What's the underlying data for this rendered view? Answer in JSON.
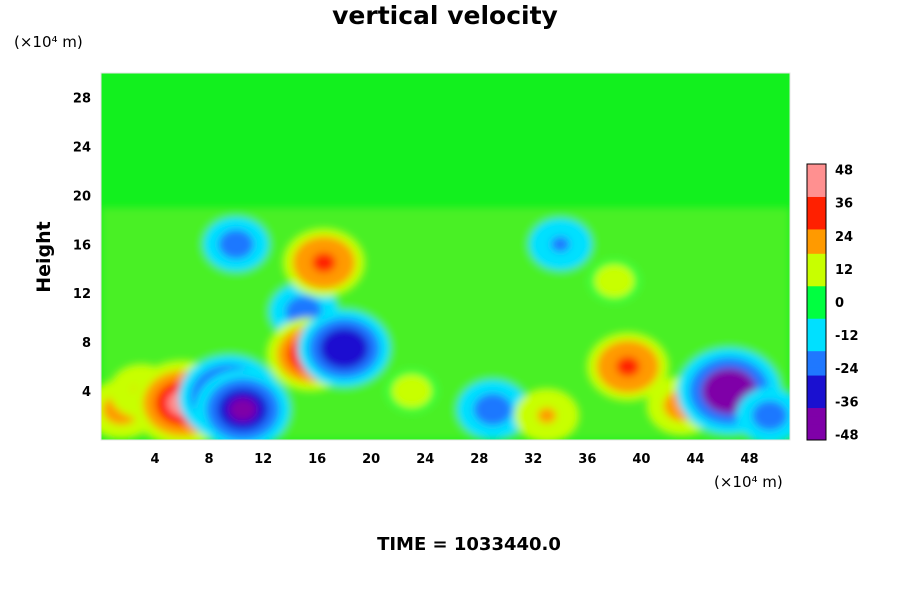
{
  "chart_data": {
    "type": "heatmap",
    "title": "vertical velocity",
    "xlabel": "",
    "ylabel": "Height",
    "x_unit_label": "(×10⁴ m)",
    "y_unit_label": "(×10⁴ m)",
    "x_ticks": [
      4,
      8,
      12,
      16,
      20,
      24,
      28,
      32,
      36,
      40,
      44,
      48
    ],
    "y_ticks": [
      4,
      8,
      12,
      16,
      20,
      24,
      28
    ],
    "xlim": [
      0,
      51
    ],
    "ylim": [
      0,
      30
    ],
    "colorbar": {
      "ticks": [
        48,
        36,
        24,
        12,
        0,
        -12,
        -24,
        -36,
        -48
      ],
      "range": [
        -50,
        50
      ],
      "colors": [
        "#7f00a8",
        "#1a10d0",
        "#1f78ff",
        "#00e0ff",
        "#00ff40",
        "#c8ff00",
        "#ff9a00",
        "#ff2000",
        "#ff9090"
      ]
    },
    "features": [
      {
        "x": 1.5,
        "y": 2.5,
        "value": 22
      },
      {
        "x": 3.0,
        "y": 4.0,
        "value": 18
      },
      {
        "x": 6.0,
        "y": 3.0,
        "value": 44
      },
      {
        "x": 9.5,
        "y": 3.5,
        "value": -44
      },
      {
        "x": 10.5,
        "y": 2.5,
        "value": -40
      },
      {
        "x": 15.0,
        "y": 10.5,
        "value": -22
      },
      {
        "x": 15.5,
        "y": 7.0,
        "value": 34
      },
      {
        "x": 18.0,
        "y": 7.5,
        "value": -38
      },
      {
        "x": 16.5,
        "y": 14.5,
        "value": 30
      },
      {
        "x": 10.0,
        "y": 16.0,
        "value": -20
      },
      {
        "x": 29.0,
        "y": 2.5,
        "value": -24
      },
      {
        "x": 33.0,
        "y": 2.0,
        "value": 18
      },
      {
        "x": 34.0,
        "y": 16.0,
        "value": -18
      },
      {
        "x": 39.0,
        "y": 6.0,
        "value": 30
      },
      {
        "x": 43.0,
        "y": 2.8,
        "value": 22
      },
      {
        "x": 46.5,
        "y": 4.0,
        "value": -46
      },
      {
        "x": 49.5,
        "y": 2.0,
        "value": -20
      },
      {
        "x": 23.0,
        "y": 4.0,
        "value": 10
      },
      {
        "x": 38.0,
        "y": 13.0,
        "value": 10
      }
    ]
  },
  "footer": {
    "time_label": "TIME = 1033440.0"
  }
}
